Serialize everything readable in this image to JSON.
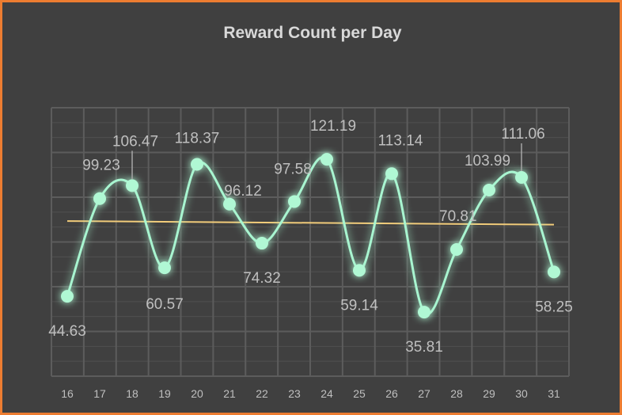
{
  "chart_data": {
    "type": "line",
    "title": "Reward Count per Day",
    "categories": [
      "16",
      "17",
      "18",
      "19",
      "20",
      "21",
      "22",
      "23",
      "24",
      "25",
      "26",
      "27",
      "28",
      "29",
      "30",
      "31"
    ],
    "series": [
      {
        "values": [
          44.63,
          99.23,
          106.47,
          60.57,
          118.37,
          96.12,
          74.32,
          97.58,
          121.19,
          59.14,
          113.14,
          35.81,
          70.81,
          103.99,
          111.06,
          58.25
        ]
      }
    ],
    "trendline": {
      "type": "linear"
    },
    "ylim": [
      0,
      150
    ],
    "grid": true,
    "legend": "none",
    "colors": {
      "background": "#404040",
      "border": "#ED7D31",
      "series": "#A8F5D0",
      "marker": "#B0F8D4",
      "trendline": "#F2CC7A",
      "grid": "#5C5C5C",
      "text": "#BFBFBF",
      "title": "#D9D9D9"
    }
  }
}
